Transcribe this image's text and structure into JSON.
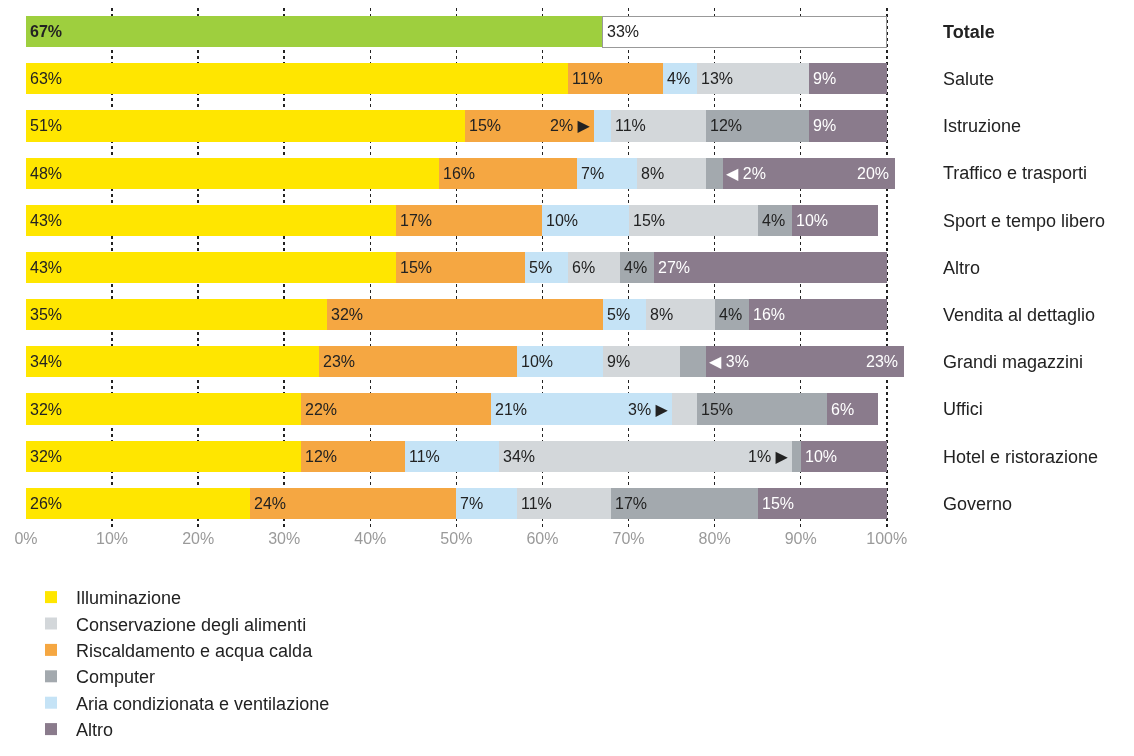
{
  "chart_data": {
    "type": "bar",
    "orientation": "horizontal",
    "stacked": true,
    "categories": [
      "Totale",
      "Salute",
      "Istruzione",
      "Traffico e trasporti",
      "Sport e tempo libero",
      "Altro",
      "Vendita al dettaglio",
      "Grandi magazzini",
      "Uffici",
      "Hotel e ristorazione",
      "Governo"
    ],
    "series": [
      {
        "name": "Illuminazione",
        "color": "#ffe600",
        "colors": [
          "#9ecf3e",
          "#ffe600",
          "#ffe600",
          "#ffe600",
          "#ffe600",
          "#ffe600",
          "#ffe600",
          "#ffe600",
          "#ffe600",
          "#ffe600",
          "#ffe600"
        ],
        "values": [
          67,
          63,
          51,
          48,
          43,
          43,
          35,
          34,
          32,
          32,
          26
        ],
        "value_labels": [
          "67%",
          "63%",
          "51%",
          "48%",
          "43%",
          "43%",
          "35%",
          "34%",
          "32%",
          "32%",
          "26%"
        ]
      },
      {
        "color": "#ffffff",
        "values": [
          33,
          null,
          null,
          null,
          null,
          null,
          null,
          null,
          null,
          null,
          null
        ],
        "value_labels": [
          "33%",
          null,
          null,
          null,
          null,
          null,
          null,
          null,
          null,
          null,
          null
        ]
      },
      {
        "name": "Riscaldamento e acqua calda",
        "color": "#f5a742",
        "values": [
          null,
          11,
          15,
          16,
          17,
          15,
          32,
          23,
          22,
          12,
          24
        ],
        "value_labels": [
          null,
          "11%",
          "15%",
          "16%",
          "17%",
          "15%",
          "32%",
          "23%",
          "22%",
          "12%",
          "24%"
        ]
      },
      {
        "name": "Aria condizionata e ventilazione",
        "color": "#c5e3f6",
        "values": [
          null,
          4,
          2,
          7,
          10,
          5,
          5,
          10,
          21,
          11,
          7
        ],
        "value_labels": [
          null,
          "4%",
          "2% ▶",
          "7%",
          "10%",
          "5%",
          "5%",
          "10%",
          "21%",
          "11%",
          "7%"
        ]
      },
      {
        "name": "Conservazione degli alimenti",
        "color": "#d3d7da",
        "values": [
          null,
          13,
          11,
          8,
          15,
          6,
          8,
          9,
          3,
          34,
          11
        ],
        "value_labels": [
          null,
          "13%",
          "11%",
          "8%",
          "15%",
          "6%",
          "8%",
          "9%",
          "3% ▶",
          "34%",
          "11%"
        ]
      },
      {
        "name": "Computer",
        "color": "#a3a9ae",
        "values": [
          null,
          null,
          12,
          2,
          4,
          4,
          4,
          3,
          15,
          1,
          17
        ],
        "value_labels": [
          null,
          null,
          "12%",
          "◀ 2%",
          "4%",
          "4%",
          "4%",
          "◀ 3%",
          "15%",
          "1% ▶",
          "17%"
        ]
      },
      {
        "name": "Altro",
        "color": "#8a7b8c",
        "values": [
          null,
          9,
          9,
          20,
          10,
          27,
          16,
          23,
          6,
          10,
          15
        ],
        "value_labels": [
          null,
          "9%",
          "9%",
          "20%",
          "10%",
          "27%",
          "16%",
          "23%",
          "6%",
          "10%",
          "15%"
        ]
      }
    ],
    "xlim": [
      0,
      102
    ],
    "xticks": [
      {
        "value": 0,
        "label": "0%"
      },
      {
        "value": 10,
        "label": "10%"
      },
      {
        "value": 20,
        "label": "20%"
      },
      {
        "value": 30,
        "label": "30%"
      },
      {
        "value": 40,
        "label": "40%"
      },
      {
        "value": 50,
        "label": "50%"
      },
      {
        "value": 60,
        "label": "60%"
      },
      {
        "value": 70,
        "label": "70%"
      },
      {
        "value": 80,
        "label": "80%"
      },
      {
        "value": 90,
        "label": "90%"
      },
      {
        "value": 100,
        "label": "100%"
      }
    ],
    "grid": "x",
    "legend": "bottom"
  }
}
